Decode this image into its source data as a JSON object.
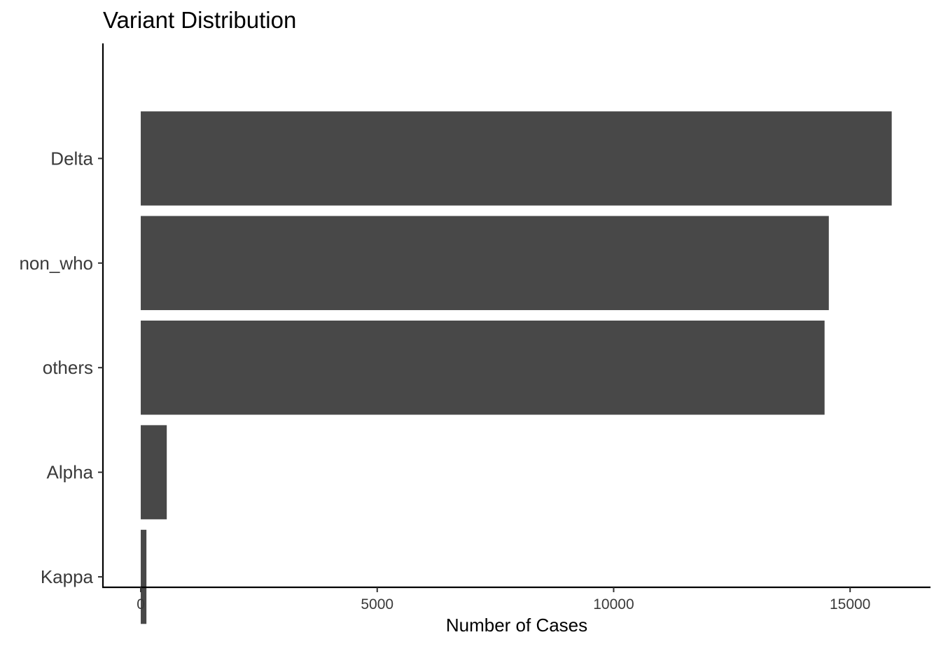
{
  "chart_data": {
    "type": "bar",
    "orientation": "horizontal",
    "title": "Variant Distribution",
    "xlabel": "Number of Cases",
    "ylabel": "",
    "categories": [
      "Delta",
      "non_who",
      "others",
      "Alpha",
      "Kappa"
    ],
    "values": [
      15880,
      14550,
      14460,
      550,
      120
    ],
    "xlim": [
      -800,
      16700
    ],
    "xticks": [
      0,
      5000,
      10000,
      15000
    ],
    "xtick_labels": [
      "0",
      "5000",
      "10000",
      "15000"
    ],
    "bar_color": "#484848",
    "grid": false,
    "legend": "none"
  }
}
